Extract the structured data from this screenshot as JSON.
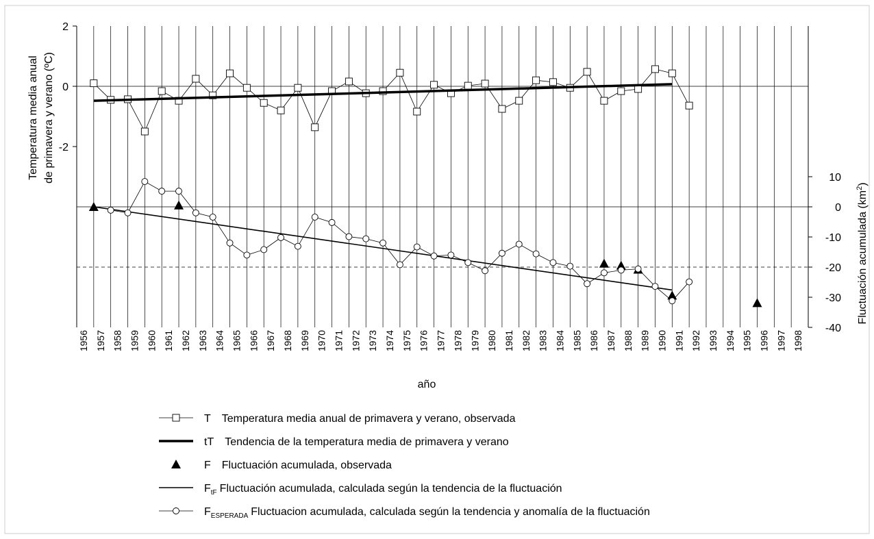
{
  "chart_data": {
    "type": "line",
    "xlabel": "año",
    "ylabel": [
      "Temperatura media anual",
      "de primavera y verano (ºC)"
    ],
    "y2label": "Fluctuación acumulada (km",
    "y2label_sup": "2",
    "y2label_end": ")",
    "xlim": [
      1956,
      1999
    ],
    "xticks": [
      1956,
      1957,
      1958,
      1959,
      1960,
      1961,
      1962,
      1963,
      1964,
      1965,
      1966,
      1967,
      1968,
      1969,
      1970,
      1971,
      1972,
      1973,
      1974,
      1975,
      1976,
      1977,
      1978,
      1979,
      1980,
      1981,
      1982,
      1983,
      1984,
      1985,
      1986,
      1987,
      1988,
      1989,
      1990,
      1991,
      1992,
      1993,
      1994,
      1995,
      1996,
      1997,
      1998
    ],
    "ylim": [
      -8,
      2
    ],
    "yticks": [
      2,
      0,
      -2
    ],
    "y2lim": [
      -40,
      60
    ],
    "y2ticks": [
      10,
      0,
      -10,
      -20,
      -30,
      -40
    ],
    "grid": true,
    "reference_lines": [
      {
        "axis": "y",
        "value": 0
      },
      {
        "axis": "y2",
        "value": 0
      },
      {
        "axis": "y2",
        "value": -20,
        "dashed": true
      }
    ],
    "series": [
      {
        "name": "T",
        "description": "Temperatura  media anual de primavera y verano, observada",
        "color": "#000000",
        "marker": "square",
        "line_width": 0.8,
        "axis": "y",
        "x": [
          1957,
          1958,
          1959,
          1960,
          1961,
          1962,
          1963,
          1964,
          1965,
          1966,
          1967,
          1968,
          1969,
          1970,
          1971,
          1972,
          1973,
          1974,
          1975,
          1976,
          1977,
          1978,
          1979,
          1980,
          1981,
          1982,
          1983,
          1984,
          1985,
          1986,
          1987,
          1988,
          1989,
          1990,
          1991,
          1992
        ],
        "values": [
          0.1,
          -0.45,
          -0.43,
          -1.5,
          -0.16,
          -0.48,
          0.25,
          -0.3,
          0.43,
          -0.05,
          -0.55,
          -0.8,
          -0.05,
          -1.36,
          -0.16,
          0.16,
          -0.23,
          -0.16,
          0.45,
          -0.84,
          0.05,
          -0.23,
          0.02,
          0.09,
          -0.75,
          -0.48,
          0.2,
          0.14,
          -0.05,
          0.48,
          -0.48,
          -0.16,
          -0.09,
          0.57,
          0.43,
          -0.64
        ]
      },
      {
        "name": "tT",
        "description": "Tendencia de la temperatura media de primavera y verano",
        "color": "#000000",
        "marker": "none",
        "line_width": 3.5,
        "axis": "y",
        "x": [
          1957,
          1991
        ],
        "values": [
          -0.48,
          0.07
        ]
      },
      {
        "name": "F",
        "description": "Fluctuación acumulada, observada",
        "color": "#000000",
        "marker": "triangle",
        "line_width": 0,
        "axis": "y2",
        "x": [
          1957,
          1962,
          1987,
          1988,
          1989,
          1991,
          1996
        ],
        "values": [
          0,
          0.5,
          -18.8,
          -19.5,
          -20.8,
          -29.4,
          -31.9
        ]
      },
      {
        "name": "F",
        "subscript": "tF",
        "description": "Fluctuación  acumulada, calculada según la tendencia de la fluctuación",
        "color": "#000000",
        "marker": "none",
        "line_width": 1.6,
        "axis": "y2",
        "x": [
          1957,
          1991
        ],
        "values": [
          0,
          -27.6
        ]
      },
      {
        "name": "F",
        "subscript": "ESPERADA",
        "description": "Fluctuacion acumulada, calculada según la tendencia y anomalía de la fluctuación",
        "color": "#000000",
        "marker": "circle",
        "line_width": 0.8,
        "axis": "y2",
        "x": [
          1958,
          1959,
          1960,
          1961,
          1962,
          1963,
          1964,
          1965,
          1966,
          1967,
          1968,
          1969,
          1970,
          1971,
          1972,
          1973,
          1974,
          1975,
          1976,
          1977,
          1978,
          1979,
          1980,
          1981,
          1982,
          1983,
          1984,
          1985,
          1986,
          1987,
          1988,
          1989,
          1990,
          1991,
          1992
        ],
        "values": [
          -1.1,
          -2,
          8.4,
          5.2,
          5.2,
          -2,
          -3.4,
          -12,
          -16,
          -14.2,
          -10.2,
          -13.1,
          -3.4,
          -5.2,
          -9.9,
          -10.6,
          -12,
          -19.2,
          -13.3,
          -16.3,
          -16,
          -18.5,
          -21.2,
          -15.4,
          -12.4,
          -15.6,
          -18.5,
          -19.7,
          -25.5,
          -21.9,
          -21,
          -20.6,
          -26.4,
          -31.2,
          -24.9
        ]
      }
    ]
  }
}
